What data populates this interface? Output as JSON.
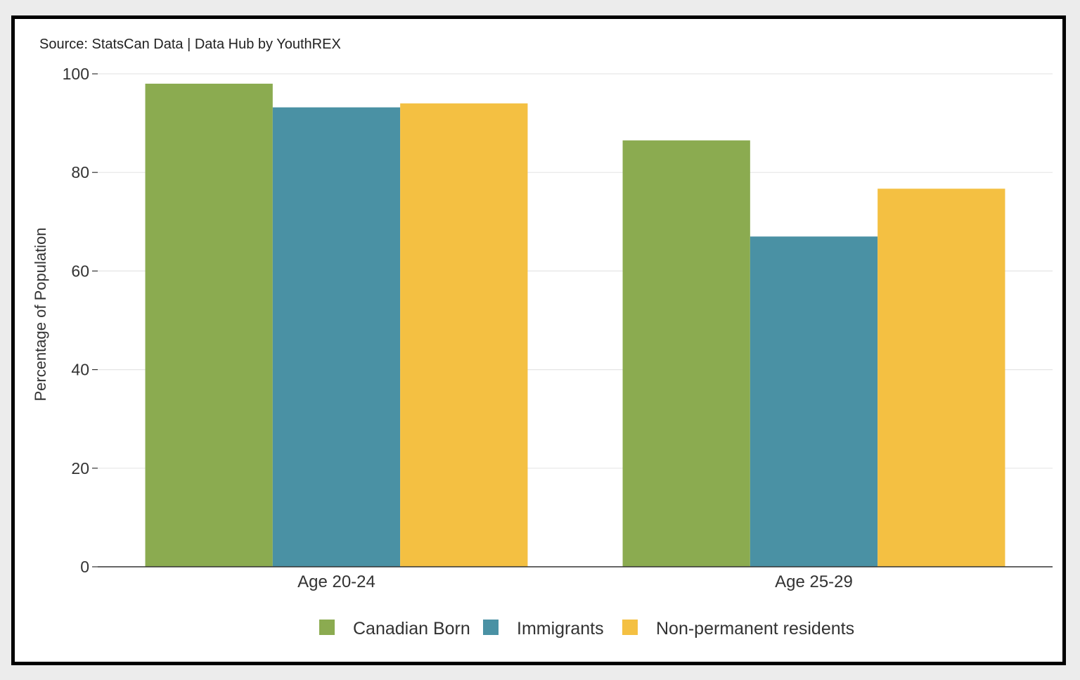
{
  "source": "Source: StatsCan Data | Data Hub by YouthREX",
  "colors": {
    "canadian_born": "#8bab50",
    "immigrants": "#4a91a4",
    "non_permanent": "#f4c042",
    "grid": "#e6e6e6",
    "axis": "#333333"
  },
  "chart_data": {
    "type": "bar",
    "title": "",
    "xlabel": "",
    "ylabel": "Percentage of Population",
    "categories": [
      "Age 20-24",
      "Age 25-29"
    ],
    "ylim": [
      0,
      100
    ],
    "yticks": [
      0,
      20,
      40,
      60,
      80,
      100
    ],
    "grid": true,
    "legend_position": "bottom",
    "series": [
      {
        "name": "Canadian Born",
        "color": "#8bab50",
        "values": [
          98,
          86.5
        ]
      },
      {
        "name": "Immigrants",
        "color": "#4a91a4",
        "values": [
          93.2,
          67
        ]
      },
      {
        "name": "Non-permanent residents",
        "color": "#f4c042",
        "values": [
          94,
          76.7
        ]
      }
    ]
  }
}
